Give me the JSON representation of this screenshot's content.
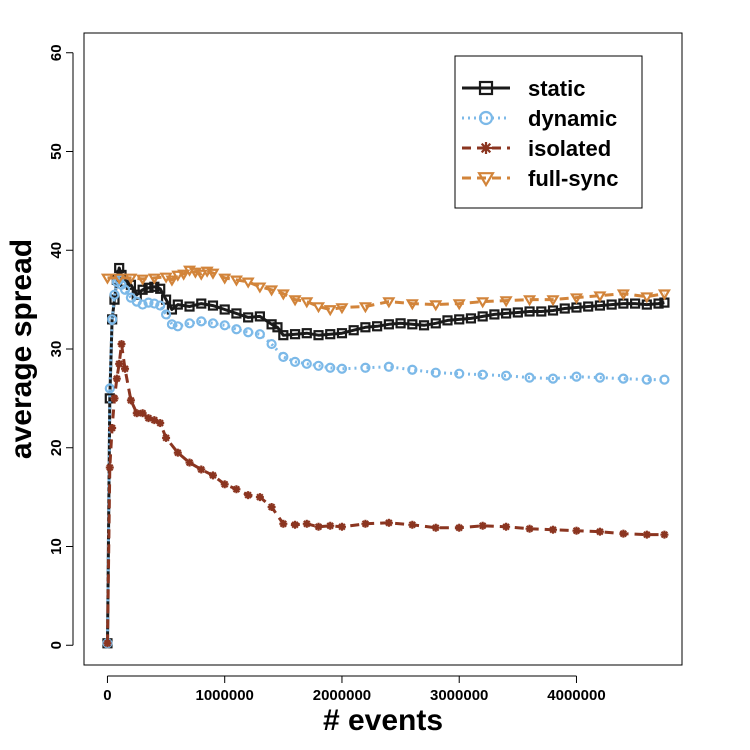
{
  "chart_data": {
    "type": "line",
    "xlabel": "# events",
    "ylabel": "average spread",
    "xlim": [
      -200000,
      4900000
    ],
    "ylim": [
      -2,
      62
    ],
    "x_ticks": [
      0,
      1000000,
      2000000,
      3000000,
      4000000
    ],
    "x_tick_labels": [
      "0",
      "1000000",
      "2000000",
      "3000000",
      "4000000"
    ],
    "y_ticks": [
      0,
      10,
      20,
      30,
      40,
      50,
      60
    ],
    "y_tick_labels": [
      "0",
      "10",
      "20",
      "30",
      "40",
      "50",
      "60"
    ],
    "grid": false,
    "legend_position": "top-right",
    "series": [
      {
        "name": "static",
        "color": "#1a1a1a",
        "line_style": "solid",
        "marker": "square",
        "x": [
          0,
          20000,
          40000,
          60000,
          80000,
          100000,
          120000,
          150000,
          200000,
          250000,
          300000,
          350000,
          400000,
          450000,
          500000,
          550000,
          600000,
          700000,
          800000,
          900000,
          1000000,
          1100000,
          1200000,
          1300000,
          1400000,
          1450000,
          1500000,
          1600000,
          1700000,
          1800000,
          1900000,
          2000000,
          2100000,
          2200000,
          2300000,
          2400000,
          2500000,
          2600000,
          2700000,
          2800000,
          2900000,
          3000000,
          3100000,
          3200000,
          3300000,
          3400000,
          3500000,
          3600000,
          3700000,
          3800000,
          3900000,
          4000000,
          4100000,
          4200000,
          4300000,
          4400000,
          4500000,
          4600000,
          4700000,
          4750000
        ],
        "y": [
          0.2,
          25,
          33,
          35,
          37,
          38.2,
          37.5,
          36.8,
          36.5,
          35.5,
          36,
          36.2,
          36.3,
          36.1,
          35,
          34,
          34.5,
          34.3,
          34.6,
          34.4,
          34,
          33.6,
          33.2,
          33.3,
          32.5,
          32.2,
          31.4,
          31.5,
          31.6,
          31.4,
          31.5,
          31.6,
          31.9,
          32.2,
          32.3,
          32.5,
          32.6,
          32.5,
          32.4,
          32.6,
          32.9,
          33.0,
          33.1,
          33.3,
          33.5,
          33.6,
          33.7,
          33.8,
          33.8,
          33.9,
          34.1,
          34.2,
          34.3,
          34.4,
          34.5,
          34.6,
          34.6,
          34.5,
          34.6,
          34.7
        ]
      },
      {
        "name": "dynamic",
        "color": "#7cb9e8",
        "line_style": "dotted",
        "marker": "circle",
        "x": [
          0,
          20000,
          40000,
          60000,
          80000,
          100000,
          120000,
          150000,
          200000,
          250000,
          300000,
          350000,
          400000,
          450000,
          500000,
          550000,
          600000,
          700000,
          800000,
          900000,
          1000000,
          1100000,
          1200000,
          1300000,
          1400000,
          1500000,
          1600000,
          1700000,
          1800000,
          1900000,
          2000000,
          2200000,
          2400000,
          2600000,
          2800000,
          3000000,
          3200000,
          3400000,
          3600000,
          3800000,
          4000000,
          4200000,
          4400000,
          4600000,
          4750000
        ],
        "y": [
          0.2,
          26,
          33,
          35.5,
          36.8,
          37,
          36.5,
          36,
          35.2,
          34.8,
          34.5,
          34.7,
          34.6,
          34.4,
          33.5,
          32.5,
          32.3,
          32.6,
          32.8,
          32.6,
          32.4,
          32.0,
          31.7,
          31.5,
          30.5,
          29.2,
          28.7,
          28.5,
          28.3,
          28.1,
          28.0,
          28.1,
          28.2,
          27.9,
          27.6,
          27.5,
          27.4,
          27.3,
          27.1,
          27.0,
          27.2,
          27.1,
          27.0,
          26.9,
          26.9
        ]
      },
      {
        "name": "isolated",
        "color": "#8b3520",
        "line_style": "dashed",
        "marker": "asterisk",
        "x": [
          0,
          20000,
          40000,
          60000,
          80000,
          100000,
          120000,
          150000,
          200000,
          250000,
          300000,
          350000,
          400000,
          450000,
          500000,
          600000,
          700000,
          800000,
          900000,
          1000000,
          1100000,
          1200000,
          1300000,
          1400000,
          1500000,
          1600000,
          1700000,
          1800000,
          1900000,
          2000000,
          2200000,
          2400000,
          2600000,
          2800000,
          3000000,
          3200000,
          3400000,
          3600000,
          3800000,
          4000000,
          4200000,
          4400000,
          4600000,
          4750000
        ],
        "y": [
          0.2,
          18,
          22,
          25,
          27,
          28.5,
          30.5,
          28,
          24.8,
          23.5,
          23.5,
          23,
          22.8,
          22.5,
          21,
          19.5,
          18.5,
          17.8,
          17.2,
          16.3,
          15.8,
          15.2,
          15.0,
          14.0,
          12.3,
          12.2,
          12.3,
          12.0,
          12.1,
          12.0,
          12.3,
          12.4,
          12.2,
          11.9,
          11.9,
          12.1,
          12.0,
          11.8,
          11.7,
          11.6,
          11.5,
          11.3,
          11.2,
          11.2
        ]
      },
      {
        "name": "full-sync",
        "color": "#d2843a",
        "line_style": "dashed",
        "marker": "triangle-down",
        "x": [
          0,
          100000,
          200000,
          300000,
          400000,
          500000,
          550000,
          600000,
          650000,
          700000,
          750000,
          800000,
          850000,
          900000,
          1000000,
          1100000,
          1200000,
          1300000,
          1400000,
          1500000,
          1600000,
          1700000,
          1800000,
          1900000,
          2000000,
          2200000,
          2400000,
          2600000,
          2800000,
          3000000,
          3200000,
          3400000,
          3600000,
          3800000,
          4000000,
          4200000,
          4400000,
          4600000,
          4750000
        ],
        "y": [
          37.2,
          37.2,
          37.2,
          37.1,
          37.2,
          37.3,
          37.0,
          37.5,
          37.6,
          38.0,
          37.8,
          37.6,
          37.9,
          37.7,
          37.2,
          37.0,
          36.8,
          36.3,
          36.0,
          35.6,
          35.0,
          34.8,
          34.3,
          34.0,
          34.2,
          34.3,
          34.8,
          34.6,
          34.5,
          34.6,
          34.8,
          34.9,
          35.0,
          35.0,
          35.2,
          35.4,
          35.6,
          35.3,
          35.6
        ]
      }
    ]
  }
}
